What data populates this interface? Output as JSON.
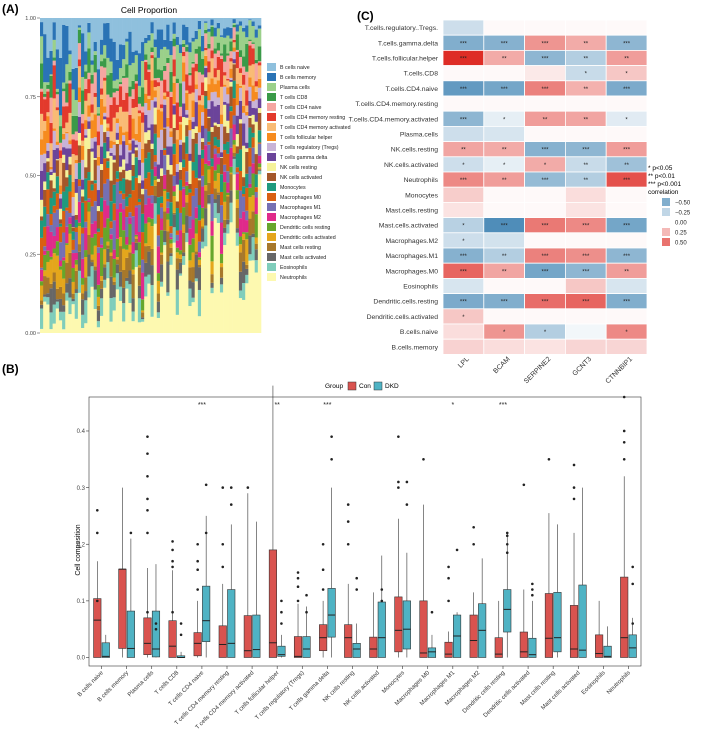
{
  "panels": {
    "a": "(A)",
    "b": "(B)",
    "c": "(C)"
  },
  "chart_data": [
    {
      "type": "bar",
      "panel": "A",
      "title": "Cell Proportion",
      "stacked": true,
      "ylim": [
        0,
        1
      ],
      "yticks": [
        "0.00",
        "0.25",
        "0.50",
        "0.75",
        "1.00"
      ],
      "n_samples": 70,
      "legend_position": "right",
      "legend": [
        {
          "name": "B cells naive",
          "color": "#8fc0dd"
        },
        {
          "name": "B cells memory",
          "color": "#2a73b5"
        },
        {
          "name": "Plasma cells",
          "color": "#9bd08a"
        },
        {
          "name": "T cells CD8",
          "color": "#3a9a48"
        },
        {
          "name": "T cells CD4 naive",
          "color": "#f5a6a1"
        },
        {
          "name": "T cells CD4 memory resting",
          "color": "#e33a2c"
        },
        {
          "name": "T cells CD4 memory activated",
          "color": "#f9bb75"
        },
        {
          "name": "T cells follicular helper",
          "color": "#f68b1f"
        },
        {
          "name": "T cells regulatory (Tregs)",
          "color": "#c8b3d7"
        },
        {
          "name": "T cells gamma delta",
          "color": "#6b449a"
        },
        {
          "name": "NK cells resting",
          "color": "#f5f29a"
        },
        {
          "name": "NK cells activated",
          "color": "#a4572a"
        },
        {
          "name": "Monocytes",
          "color": "#1f9a7e"
        },
        {
          "name": "Macrophages M0",
          "color": "#d95f11"
        },
        {
          "name": "Macrophages M1",
          "color": "#7570b3"
        },
        {
          "name": "Macrophages M2",
          "color": "#e02a8a"
        },
        {
          "name": "Dendritic cells resting",
          "color": "#67a62b"
        },
        {
          "name": "Dendritic cells activated",
          "color": "#e4a61c"
        },
        {
          "name": "Mast cells resting",
          "color": "#a7782b"
        },
        {
          "name": "Mast cells activated",
          "color": "#676767"
        },
        {
          "name": "Eosinophils",
          "color": "#7fcdbb"
        },
        {
          "name": "Neutrophils",
          "color": "#fdf9b0"
        }
      ]
    },
    {
      "type": "box",
      "panel": "B",
      "legend_title": "Group",
      "groups": [
        {
          "name": "Con",
          "color": "#d9534f"
        },
        {
          "name": "DKD",
          "color": "#4fb3c4"
        }
      ],
      "ylabel": "Cell composition",
      "ylim": [
        -0.015,
        0.46
      ],
      "yticks": [
        "0.0",
        "0.1",
        "0.2",
        "0.3",
        "0.4"
      ],
      "categories": [
        "B cells naive",
        "B cells memory",
        "Plasma cells",
        "T cells CD8",
        "T cells CD4 naive",
        "T cells CD4 memory resting",
        "T cells CD4 memory activated",
        "T cells follicular helper",
        "T cells regulatory (Tregs)",
        "T cells gamma delta",
        "NK cells resting",
        "NK cells activated",
        "Monocytes",
        "Macrophages M0",
        "Macrophages M1",
        "Macrophages M2",
        "Dendritic cells resting",
        "Dendritic cells activated",
        "Mast cells resting",
        "Mast cells activated",
        "Eosinophils",
        "Neutrophils"
      ],
      "significance": [
        "",
        "",
        "",
        "",
        "***",
        "",
        "",
        "**",
        "",
        "***",
        "",
        "",
        "",
        "",
        "*",
        "",
        "***",
        "",
        "",
        "",
        "",
        ""
      ],
      "boxes": [
        {
          "con": [
            0,
            0,
            0.066,
            0.104,
            0.17,
            [
              0.22,
              0.26,
              0.1
            ]
          ],
          "dkd": [
            0,
            0,
            0.002,
            0.026,
            0.04,
            []
          ]
        },
        {
          "con": [
            0,
            0.016,
            0.156,
            0.156,
            0.3,
            []
          ],
          "dkd": [
            0,
            0,
            0.016,
            0.082,
            0.21,
            [
              0.22
            ]
          ]
        },
        {
          "con": [
            0,
            0.005,
            0.025,
            0.07,
            0.158,
            [
              0.32,
              0.36,
              0.39,
              0.26,
              0.28,
              0.22,
              0.08
            ]
          ],
          "dkd": [
            0,
            0.001,
            0.015,
            0.082,
            0.165,
            [
              0.06,
              0.05
            ]
          ]
        },
        {
          "con": [
            0,
            0,
            0.02,
            0.065,
            0.154,
            [
              0.205,
              0.19,
              0.16,
              0.17,
              0.08
            ]
          ],
          "dkd": [
            0,
            0,
            0,
            0.003,
            0.01,
            [
              0.06,
              0.04
            ]
          ]
        },
        {
          "con": [
            0,
            0.003,
            0.025,
            0.044,
            0.1,
            [
              0.2,
              0.155,
              0.12,
              0.17
            ]
          ],
          "dkd": [
            0,
            0.028,
            0.065,
            0.126,
            0.25,
            [
              0.305,
              0.22
            ]
          ]
        },
        {
          "con": [
            0,
            0,
            0.023,
            0.056,
            0.13,
            [
              0.3,
              0.16,
              0.2
            ]
          ],
          "dkd": [
            0,
            0,
            0.025,
            0.12,
            0.235,
            [
              0.3,
              0.27
            ]
          ]
        },
        {
          "con": [
            0,
            0,
            0.012,
            0.074,
            0.29,
            [
              0.3
            ]
          ],
          "dkd": [
            0,
            0,
            0.014,
            0.075,
            0.24,
            []
          ]
        },
        {
          "con": [
            0,
            0,
            0.026,
            0.19,
            0.48,
            []
          ],
          "dkd": [
            0,
            0.002,
            0.005,
            0.02,
            0.04,
            [
              0.1,
              0.08,
              0.06
            ]
          ]
        },
        {
          "con": [
            0,
            0,
            0.002,
            0.037,
            0.095,
            [
              0.14,
              0.125,
              0.15,
              0.1
            ]
          ],
          "dkd": [
            0,
            0,
            0.015,
            0.037,
            0.09,
            [
              0.11,
              0.08
            ]
          ]
        },
        {
          "con": [
            0,
            0.012,
            0.035,
            0.058,
            0.1,
            [
              0.2,
              0.155,
              0.12
            ]
          ],
          "dkd": [
            0,
            0.036,
            0.075,
            0.122,
            0.3,
            [
              0.35,
              0.39
            ]
          ]
        },
        {
          "con": [
            0,
            0,
            0.035,
            0.058,
            0.13,
            [
              0.27,
              0.24,
              0.2
            ]
          ],
          "dkd": [
            0,
            0,
            0.015,
            0.025,
            0.06,
            [
              0.14,
              0.12
            ]
          ]
        },
        {
          "con": [
            0,
            0,
            0.015,
            0.036,
            0.115,
            []
          ],
          "dkd": [
            0,
            0,
            0.035,
            0.098,
            0.18,
            [
              0.1,
              0.12
            ]
          ]
        },
        {
          "con": [
            0,
            0.01,
            0.048,
            0.107,
            0.245,
            [
              0.39,
              0.31,
              0.3
            ]
          ],
          "dkd": [
            0,
            0.015,
            0.05,
            0.1,
            0.185,
            [
              0.31,
              0.27
            ]
          ]
        },
        {
          "con": [
            0,
            0,
            0.008,
            0.1,
            0.27,
            [
              0.35
            ]
          ],
          "dkd": [
            0,
            0,
            0.01,
            0.017,
            0.04,
            [
              0.08
            ]
          ]
        },
        {
          "con": [
            0,
            0,
            0.006,
            0.027,
            0.046,
            [
              0.14,
              0.1,
              0.16
            ]
          ],
          "dkd": [
            0,
            0,
            0.038,
            0.075,
            0.08,
            [
              0.19
            ]
          ]
        },
        {
          "con": [
            0,
            0,
            0.03,
            0.075,
            0.115,
            [
              0.2,
              0.23
            ]
          ],
          "dkd": [
            0,
            0,
            0.048,
            0.095,
            0.175,
            []
          ]
        },
        {
          "con": [
            0,
            0,
            0.006,
            0.035,
            0.1,
            []
          ],
          "dkd": [
            0,
            0.045,
            0.085,
            0.12,
            0.22,
            [
              0.22,
              0.215,
              0.2,
              0.185
            ]
          ]
        },
        {
          "con": [
            0,
            0,
            0.01,
            0.045,
            0.12,
            [
              0.305
            ]
          ],
          "dkd": [
            0,
            0,
            0.005,
            0.034,
            0.1,
            [
              0.13,
              0.12,
              0.11
            ]
          ]
        },
        {
          "con": [
            0,
            0,
            0.034,
            0.113,
            0.255,
            [
              0.35
            ]
          ],
          "dkd": [
            0,
            0.01,
            0.035,
            0.115,
            0.235,
            []
          ]
        },
        {
          "con": [
            0,
            0,
            0.015,
            0.092,
            0.22,
            [
              0.34,
              0.3,
              0.28
            ]
          ],
          "dkd": [
            0,
            0,
            0.013,
            0.128,
            0.3,
            []
          ]
        },
        {
          "con": [
            0,
            0,
            0.007,
            0.04,
            0.1,
            []
          ],
          "dkd": [
            0,
            0,
            0.002,
            0.02,
            0.055,
            []
          ]
        },
        {
          "con": [
            0,
            0,
            0.035,
            0.142,
            0.32,
            [
              0.46,
              0.38,
              0.4,
              0.35
            ]
          ],
          "dkd": [
            0,
            0,
            0.017,
            0.04,
            0.07,
            [
              0.16,
              0.13,
              0.06
            ]
          ]
        }
      ]
    },
    {
      "type": "heatmap",
      "panel": "C",
      "columns": [
        "LPL",
        "BCAM",
        "SERPINE2",
        "GCNT3",
        "CTNNBIP1"
      ],
      "rows": [
        "T.cells.regulatory..Tregs.",
        "T.cells.gamma.delta",
        "T.cells.follicular.helper",
        "T.cells.CD8",
        "T.cells.CD4.naive",
        "T.cells.CD4.memory.resting",
        "T.cells.CD4.memory.activated",
        "Plasma.cells",
        "NK.cells.resting",
        "NK.cells.activated",
        "Neutrophils",
        "Monocytes",
        "Mast.cells.resting",
        "Mast.cells.activated",
        "Macrophages.M2",
        "Macrophages.M1",
        "Macrophages.M0",
        "Eosinophils",
        "Dendritic.cells.resting",
        "Dendritic.cells.activated",
        "B.cells.naive",
        "B.cells.memory"
      ],
      "values": [
        [
          -0.2,
          0.02,
          0.02,
          0.02,
          0.02
        ],
        [
          -0.5,
          -0.48,
          0.38,
          0.3,
          -0.45
        ],
        [
          0.75,
          0.3,
          -0.45,
          -0.3,
          0.35
        ],
        [
          0.02,
          0.02,
          0.08,
          -0.22,
          0.2
        ],
        [
          -0.62,
          -0.55,
          0.45,
          0.28,
          -0.52
        ],
        [
          0.02,
          0.02,
          0.02,
          0.02,
          0.02
        ],
        [
          -0.45,
          -0.1,
          0.35,
          0.32,
          -0.12
        ],
        [
          -0.2,
          -0.16,
          0.02,
          0.02,
          0.02
        ],
        [
          0.32,
          0.3,
          -0.48,
          -0.45,
          0.35
        ],
        [
          -0.2,
          -0.1,
          0.3,
          -0.22,
          -0.38
        ],
        [
          0.42,
          0.35,
          -0.42,
          -0.3,
          0.62
        ],
        [
          0.18,
          0.02,
          0.02,
          0.12,
          0.02
        ],
        [
          0.1,
          0.02,
          0.02,
          0.1,
          0.02
        ],
        [
          -0.28,
          -0.7,
          0.48,
          0.42,
          -0.55
        ],
        [
          -0.2,
          -0.18,
          0.02,
          0.02,
          0.02
        ],
        [
          -0.48,
          -0.3,
          0.45,
          0.4,
          -0.45
        ],
        [
          0.55,
          0.32,
          -0.55,
          -0.45,
          0.35
        ],
        [
          -0.16,
          0.02,
          0.02,
          0.2,
          -0.16
        ],
        [
          -0.52,
          -0.5,
          0.52,
          0.55,
          -0.5
        ],
        [
          0.2,
          0.02,
          0.02,
          0.02,
          0.02
        ],
        [
          0.12,
          0.38,
          -0.3,
          -0.05,
          0.42
        ],
        [
          0.16,
          0.12,
          0.1,
          0.15,
          0.15
        ]
      ],
      "annotations": [
        [
          "",
          "",
          "",
          "",
          ""
        ],
        [
          "***",
          "***",
          "***",
          "**",
          "***"
        ],
        [
          "***",
          "**",
          "***",
          "**",
          "**"
        ],
        [
          "",
          "",
          "",
          "*",
          "*"
        ],
        [
          "***",
          "***",
          "***",
          "**",
          "***"
        ],
        [
          "",
          "",
          "",
          "",
          ""
        ],
        [
          "***",
          "*",
          "**",
          "**",
          "*"
        ],
        [
          "",
          "",
          "",
          "",
          ""
        ],
        [
          "**",
          "**",
          "***",
          "***",
          "***"
        ],
        [
          "*",
          "*",
          "*",
          "**",
          "**"
        ],
        [
          "***",
          "**",
          "***",
          "**",
          "***"
        ],
        [
          "",
          "",
          "",
          "",
          ""
        ],
        [
          "",
          "",
          "",
          "",
          ""
        ],
        [
          "*",
          "***",
          "***",
          "***",
          "***"
        ],
        [
          "*",
          "",
          "",
          "",
          ""
        ],
        [
          "***",
          "**",
          "***",
          "***",
          "***"
        ],
        [
          "***",
          "**",
          "***",
          "***",
          "**"
        ],
        [
          "",
          "",
          "",
          "",
          ""
        ],
        [
          "***",
          "***",
          "***",
          "***",
          "***"
        ],
        [
          "*",
          "",
          "",
          "",
          ""
        ],
        [
          "",
          "*",
          "*",
          "",
          "*"
        ],
        [
          "",
          "",
          "",
          "",
          ""
        ]
      ],
      "sig_legend": [
        "* p<0.05",
        "** p<0.01",
        "*** p<0.001"
      ],
      "color_legend_title": "correlation",
      "color_legend": [
        {
          "label": "−0.50",
          "value": -0.5
        },
        {
          "label": "−0.25",
          "value": -0.25
        },
        {
          "label": "0.00",
          "value": 0
        },
        {
          "label": "0.25",
          "value": 0.25
        },
        {
          "label": "0.50",
          "value": 0.5
        }
      ]
    }
  ]
}
